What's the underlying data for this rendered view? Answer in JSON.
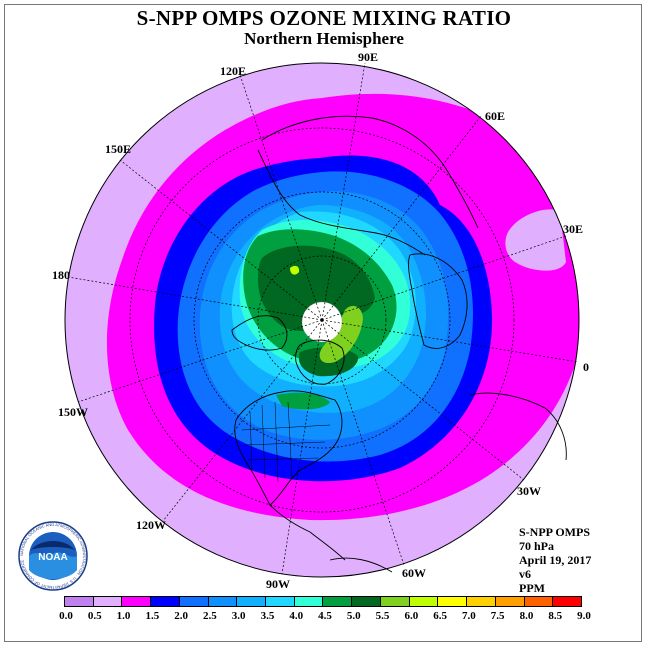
{
  "title": "S-NPP OMPS OZONE MIXING RATIO",
  "subtitle": "Northern Hemisphere",
  "longitude_labels": [
    "90E",
    "60E",
    "30E",
    "0",
    "30W",
    "60W",
    "90W",
    "120W",
    "150W",
    "180",
    "150E",
    "120E"
  ],
  "info": {
    "instrument": "S-NPP OMPS",
    "pressure": "70 hPa",
    "date": "April 19, 2017",
    "version": "v6",
    "units": "PPM"
  },
  "logo": {
    "text": "NOAA",
    "ring_text": "NATIONAL OCEANIC AND ATMOSPHERIC ADMINISTRATION · U.S. DEPARTMENT OF COMMERCE"
  },
  "colorbar": {
    "ticks": [
      "0.0",
      "0.5",
      "1.0",
      "1.5",
      "2.0",
      "2.5",
      "3.0",
      "3.5",
      "4.0",
      "4.5",
      "5.0",
      "5.5",
      "6.0",
      "6.5",
      "7.0",
      "7.5",
      "8.0",
      "8.5",
      "9.0"
    ],
    "colors": [
      "#c080f0",
      "#e0b0ff",
      "#ff00ff",
      "#0000ff",
      "#1070ff",
      "#1090ff",
      "#10b0ff",
      "#20d8ff",
      "#30ffd8",
      "#00a040",
      "#006820",
      "#80d020",
      "#c0ff00",
      "#ffff00",
      "#ffd000",
      "#ffa000",
      "#ff6000",
      "#ff0000",
      "#8b4513"
    ]
  }
}
